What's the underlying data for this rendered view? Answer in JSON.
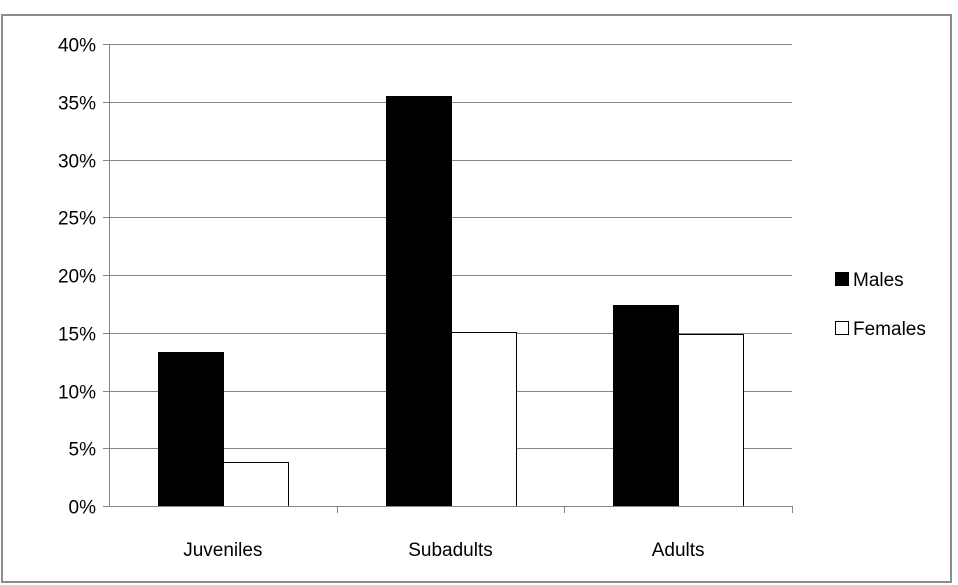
{
  "chart_data": {
    "type": "bar",
    "categories": [
      "Juveniles",
      "Subadults",
      "Adults"
    ],
    "series": [
      {
        "name": "Males",
        "values": [
          13.3,
          35.5,
          17.4
        ],
        "fill": "#000000"
      },
      {
        "name": "Females",
        "values": [
          3.8,
          15.1,
          14.9
        ],
        "fill": "#ffffff"
      }
    ],
    "yticks": [
      "0%",
      "5%",
      "10%",
      "15%",
      "20%",
      "25%",
      "30%",
      "35%",
      "40%"
    ],
    "ylim": [
      0,
      40
    ],
    "ytick_step": 5,
    "grid": true,
    "legend_position": "right",
    "colors": {
      "frame": "#8c8c8c",
      "gridline": "#868686",
      "axis": "#868686",
      "bar_stroke": "#000000"
    }
  }
}
